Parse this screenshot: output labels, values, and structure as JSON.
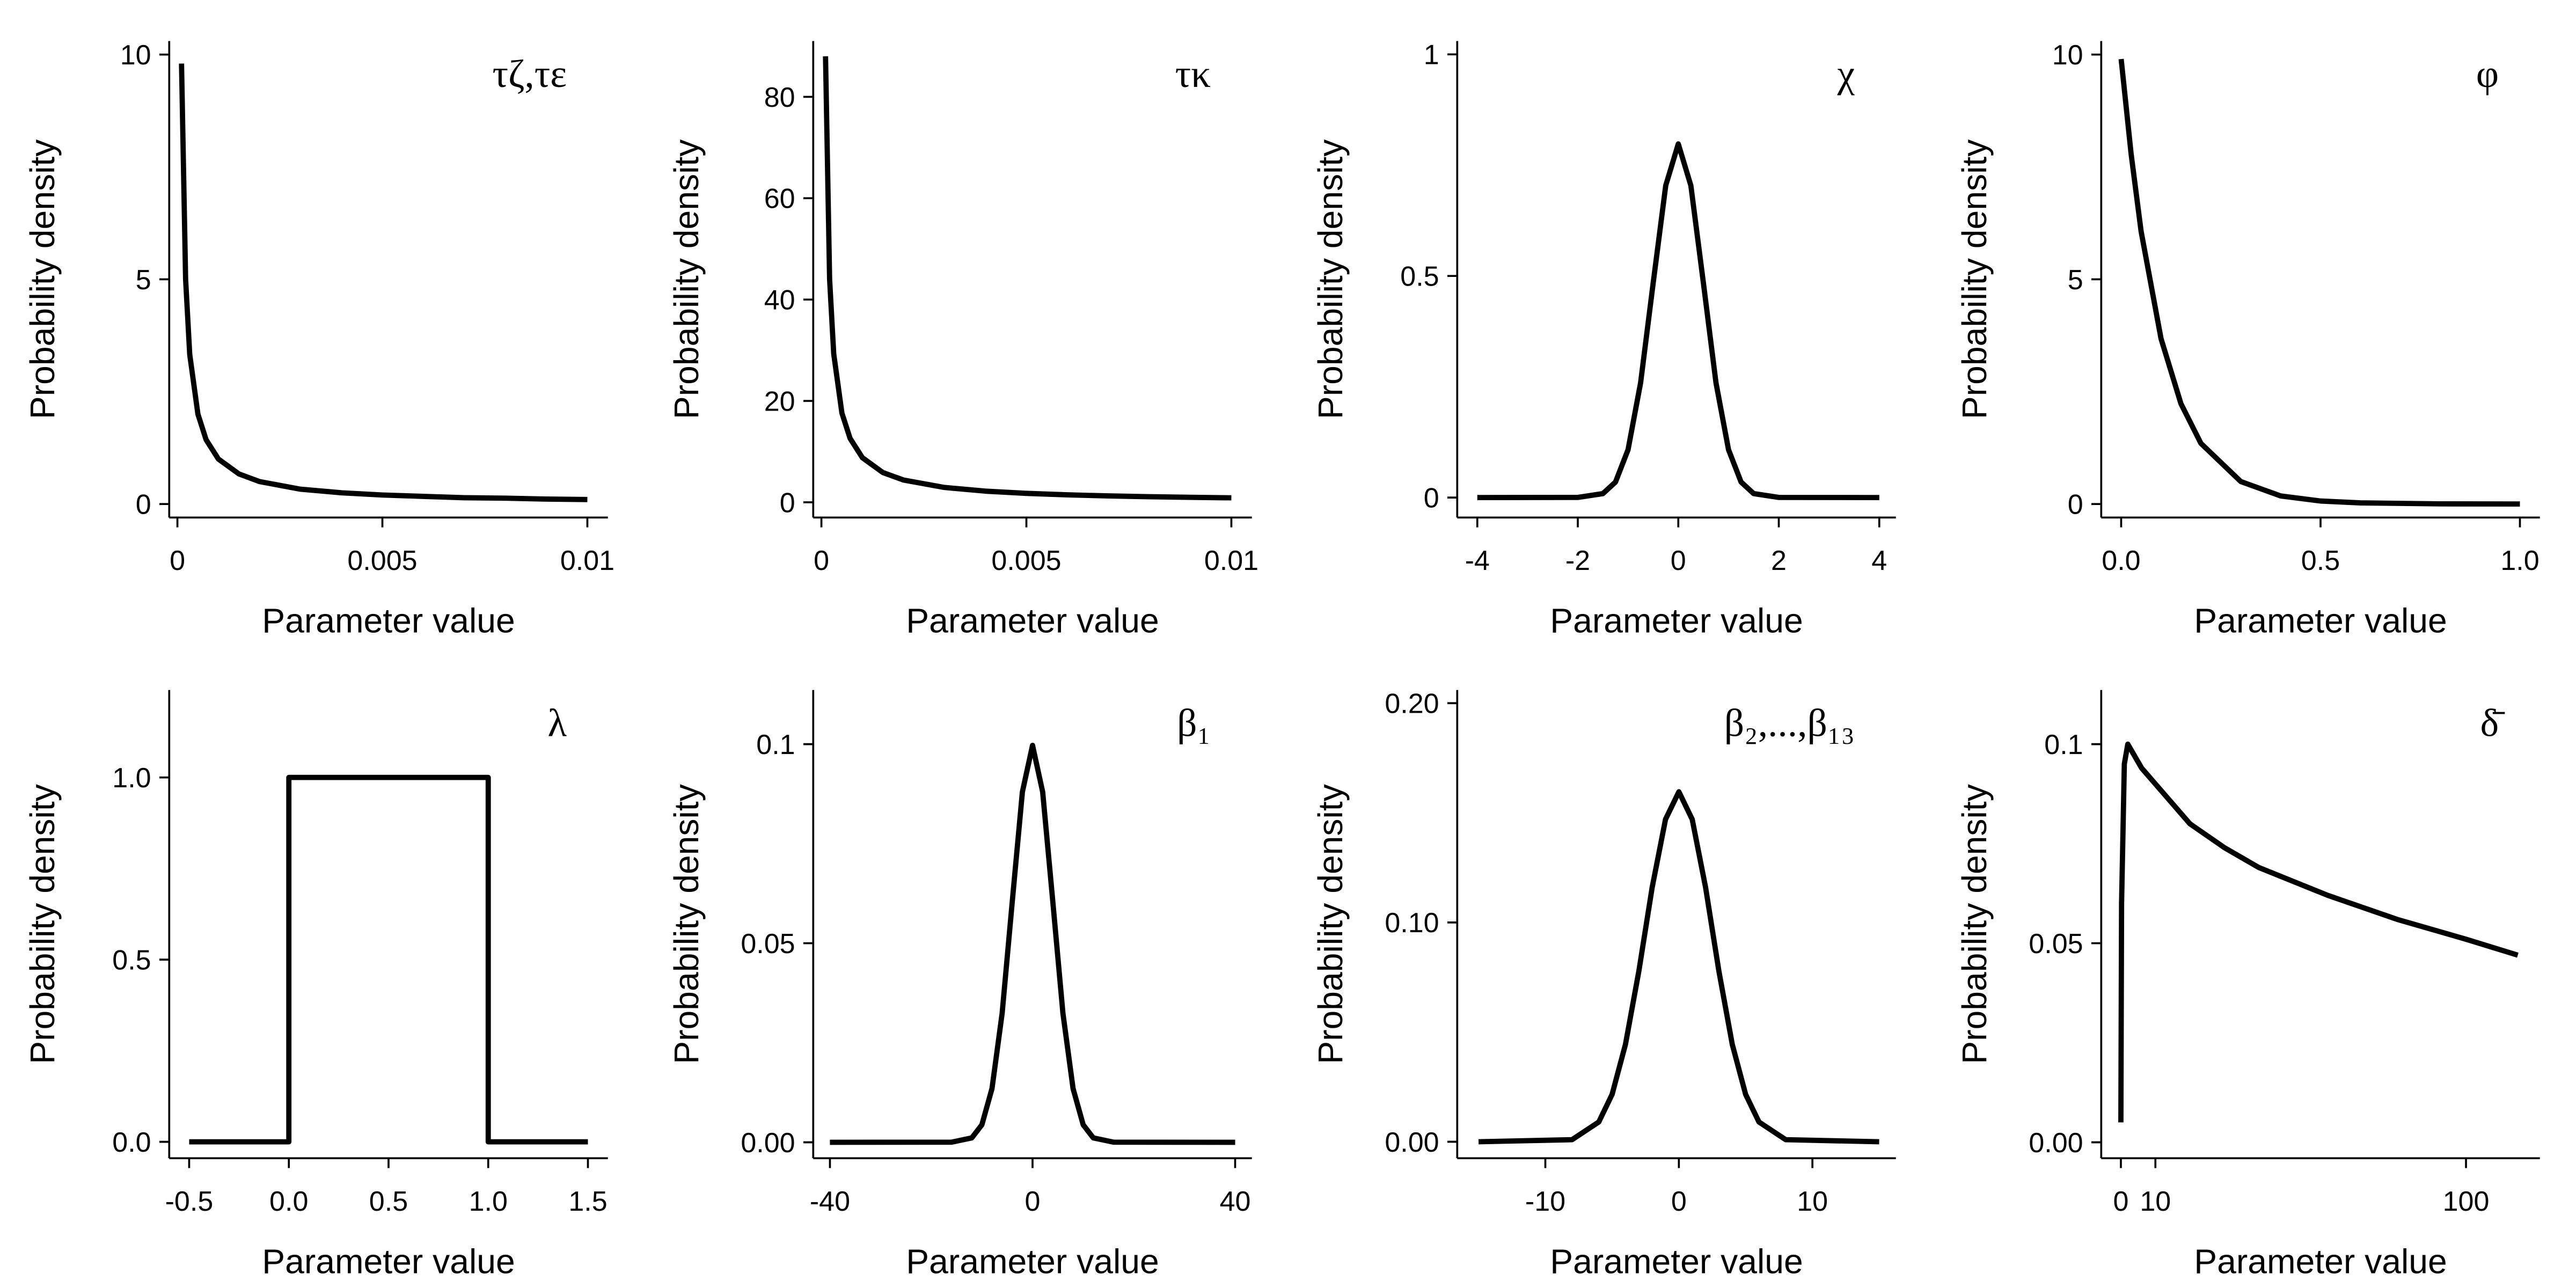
{
  "chart_data": [
    {
      "type": "line",
      "title": "τζ,τε",
      "xlabel": "Parameter value",
      "ylabel": "Probability density",
      "x": [
        0.0001,
        0.0002,
        0.0003,
        0.0005,
        0.0007,
        0.001,
        0.0015,
        0.002,
        0.003,
        0.004,
        0.005,
        0.006,
        0.007,
        0.008,
        0.009,
        0.01
      ],
      "values": [
        9.8,
        5,
        3.33,
        2,
        1.43,
        1,
        0.67,
        0.5,
        0.33,
        0.25,
        0.2,
        0.17,
        0.14,
        0.13,
        0.11,
        0.1
      ],
      "xlim": [
        -0.0002,
        0.0105
      ],
      "ylim": [
        -0.3,
        10.3
      ],
      "xticks": [
        0,
        0.005,
        0.01
      ],
      "yticks": [
        0,
        5,
        10
      ],
      "color": "#000000"
    },
    {
      "type": "line",
      "title": "τκ",
      "xlabel": "Parameter value",
      "ylabel": "Probability density",
      "x": [
        0.0001,
        0.0002,
        0.0003,
        0.0005,
        0.0007,
        0.001,
        0.0015,
        0.002,
        0.003,
        0.004,
        0.005,
        0.006,
        0.007,
        0.008,
        0.009,
        0.01
      ],
      "values": [
        88,
        44,
        29.3,
        17.6,
        12.6,
        8.8,
        5.87,
        4.4,
        2.93,
        2.2,
        1.76,
        1.47,
        1.26,
        1.1,
        0.98,
        0.88
      ],
      "xlim": [
        -0.0002,
        0.0105
      ],
      "ylim": [
        -3,
        91
      ],
      "xticks": [
        0,
        0.005,
        0.01
      ],
      "yticks": [
        0,
        20,
        40,
        60,
        80
      ],
      "color": "#000000"
    },
    {
      "type": "line",
      "title": "χ",
      "xlabel": "Parameter value",
      "ylabel": "Probability density",
      "x": [
        -4,
        -2,
        -1.5,
        -1.25,
        -1,
        -0.75,
        -0.5,
        -0.25,
        0,
        0.25,
        0.5,
        0.75,
        1,
        1.25,
        1.5,
        2,
        4
      ],
      "values": [
        0,
        0.0003,
        0.0089,
        0.035,
        0.108,
        0.259,
        0.484,
        0.704,
        0.798,
        0.704,
        0.484,
        0.259,
        0.108,
        0.035,
        0.0089,
        0.0003,
        0
      ],
      "xlim": [
        -4.4,
        4.33
      ],
      "ylim": [
        -0.045,
        1.03
      ],
      "xticks": [
        -4,
        -2,
        0,
        2,
        4
      ],
      "yticks": [
        0,
        0.5,
        1
      ],
      "color": "#000000"
    },
    {
      "type": "line",
      "title": "φ",
      "xlabel": "Parameter value",
      "ylabel": "Probability density",
      "x": [
        0,
        0.025,
        0.05,
        0.1,
        0.15,
        0.2,
        0.3,
        0.4,
        0.5,
        0.6,
        0.8,
        1
      ],
      "values": [
        9.9,
        7.79,
        6.07,
        3.68,
        2.23,
        1.35,
        0.5,
        0.18,
        0.067,
        0.025,
        0.0034,
        0.00045
      ],
      "xlim": [
        -0.05,
        1.05
      ],
      "ylim": [
        -0.3,
        10.3
      ],
      "xticks": [
        {
          "value": 0,
          "label": "0.0"
        },
        0.5,
        {
          "value": 1,
          "label": "1.0"
        }
      ],
      "yticks": [
        0,
        5,
        10
      ],
      "color": "#000000"
    },
    {
      "type": "line",
      "title": "λ",
      "xlabel": "Parameter value",
      "ylabel": "Probability density",
      "x": [
        -0.5,
        0,
        0,
        1,
        1,
        1.5
      ],
      "values": [
        0,
        0,
        1,
        1,
        0,
        0
      ],
      "xlim": [
        -0.6,
        1.6
      ],
      "ylim": [
        -0.045,
        1.24
      ],
      "xticks": [
        -0.5,
        {
          "value": 0,
          "label": "0.0"
        },
        0.5,
        {
          "value": 1,
          "label": "1.0"
        },
        1.5
      ],
      "yticks": [
        {
          "value": 0,
          "label": "0.0"
        },
        0.5,
        {
          "value": 1,
          "label": "1.0"
        }
      ],
      "color": "#000000"
    },
    {
      "type": "line",
      "title": "β₁",
      "xlabel": "Parameter value",
      "ylabel": "Probability density",
      "x": [
        -40,
        -16,
        -12,
        -10,
        -8,
        -6,
        -4,
        -2,
        0,
        2,
        4,
        6,
        8,
        10,
        12,
        16,
        40
      ],
      "values": [
        0,
        3e-05,
        0.0011,
        0.0044,
        0.0135,
        0.0324,
        0.0605,
        0.088,
        0.0997,
        0.088,
        0.0605,
        0.0324,
        0.0135,
        0.0044,
        0.0011,
        3e-05,
        0
      ],
      "xlim": [
        -43.3,
        43.3
      ],
      "ylim": [
        -0.004,
        0.1136
      ],
      "xticks": [
        -40,
        0,
        40
      ],
      "yticks": [
        {
          "value": 0,
          "label": "0.00"
        },
        0.05,
        0.1
      ],
      "color": "#000000"
    },
    {
      "type": "line",
      "title": "β₂,...,β₁₃",
      "xlabel": "Parameter value",
      "ylabel": "Probability density",
      "x": [
        -15,
        -8,
        -6,
        -5,
        -4,
        -3,
        -2,
        -1,
        0,
        1,
        2,
        3,
        4,
        5,
        6,
        8,
        15
      ],
      "values": [
        0,
        0.00095,
        0.009,
        0.0216,
        0.0444,
        0.0777,
        0.116,
        0.147,
        0.1596,
        0.147,
        0.116,
        0.0777,
        0.0444,
        0.0216,
        0.009,
        0.00095,
        0
      ],
      "xlim": [
        -16.6,
        16.25
      ],
      "ylim": [
        -0.0075,
        0.206
      ],
      "xticks": [
        -10,
        0,
        10
      ],
      "yticks": [
        {
          "value": 0,
          "label": "0.00"
        },
        {
          "value": 0.1,
          "label": "0.10"
        },
        {
          "value": 0.2,
          "label": "0.20"
        }
      ],
      "color": "#000000"
    },
    {
      "type": "line",
      "title": "δ̄",
      "xlabel": "Parameter value",
      "ylabel": "Probability density",
      "x": [
        0,
        0.2,
        1,
        2,
        4,
        6,
        10,
        20,
        30,
        40,
        60,
        80,
        100,
        115
      ],
      "values": [
        0.005,
        0.06,
        0.095,
        0.1,
        0.097,
        0.094,
        0.09,
        0.08,
        0.074,
        0.069,
        0.062,
        0.056,
        0.051,
        0.047
      ],
      "xlim": [
        -5.7,
        121.4
      ],
      "ylim": [
        -0.004,
        0.1136
      ],
      "xticks": [
        0,
        10,
        100
      ],
      "yticks": [
        {
          "value": 0,
          "label": "0.00"
        },
        0.05,
        0.1
      ],
      "color": "#000000"
    }
  ]
}
